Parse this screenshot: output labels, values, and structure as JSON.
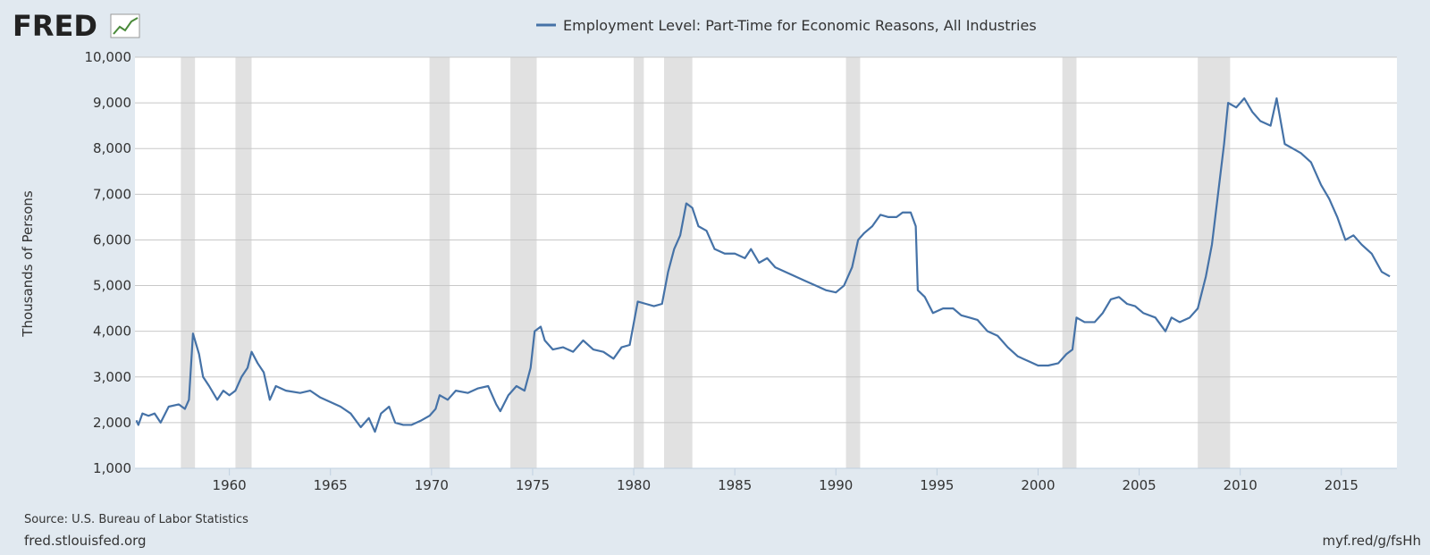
{
  "logo": "FRED",
  "chart_data": {
    "type": "line",
    "title": "Employment Level: Part-Time for Economic Reasons, All Industries",
    "y_axis_label": "Thousands of Persons",
    "source": "Source: U.S. Bureau of Labor Statistics",
    "footer_left": "fred.stlouisfed.org",
    "footer_right": "myf.red/g/fsHh",
    "grid": true,
    "xlim": [
      1955.33,
      2017.75
    ],
    "ylim": [
      1000,
      10000
    ],
    "xticks": [
      1960,
      1965,
      1970,
      1975,
      1980,
      1985,
      1990,
      1995,
      2000,
      2005,
      2010,
      2015
    ],
    "yticks": [
      {
        "value": 1000,
        "label": "1,000"
      },
      {
        "value": 2000,
        "label": "2,000"
      },
      {
        "value": 3000,
        "label": "3,000"
      },
      {
        "value": 4000,
        "label": "4,000"
      },
      {
        "value": 5000,
        "label": "5,000"
      },
      {
        "value": 6000,
        "label": "6,000"
      },
      {
        "value": 7000,
        "label": "7,000"
      },
      {
        "value": 8000,
        "label": "8,000"
      },
      {
        "value": 9000,
        "label": "9,000"
      },
      {
        "value": 10000,
        "label": "10,000"
      }
    ],
    "recessions": [
      [
        1957.6,
        1958.3
      ],
      [
        1960.3,
        1961.1
      ],
      [
        1969.9,
        1970.9
      ],
      [
        1973.9,
        1975.2
      ],
      [
        1980.0,
        1980.5
      ],
      [
        1981.5,
        1982.9
      ],
      [
        1990.5,
        1991.2
      ],
      [
        2001.2,
        2001.9
      ],
      [
        2007.9,
        2009.5
      ]
    ],
    "series": [
      {
        "name": "Employment Level: Part-Time for Economic Reasons, All Industries",
        "color": "#4572a7",
        "x": [
          1955.4,
          1955.5,
          1955.7,
          1956.0,
          1956.3,
          1956.6,
          1957.0,
          1957.5,
          1957.8,
          1958.0,
          1958.2,
          1958.5,
          1958.7,
          1959.0,
          1959.4,
          1959.7,
          1960.0,
          1960.3,
          1960.6,
          1960.9,
          1961.1,
          1961.4,
          1961.7,
          1962.0,
          1962.3,
          1962.8,
          1963.5,
          1964.0,
          1964.5,
          1965.0,
          1965.5,
          1966.0,
          1966.5,
          1966.9,
          1967.2,
          1967.5,
          1967.9,
          1968.2,
          1968.6,
          1969.0,
          1969.5,
          1969.9,
          1970.2,
          1970.4,
          1970.8,
          1971.2,
          1971.8,
          1972.3,
          1972.8,
          1973.2,
          1973.4,
          1973.8,
          1974.2,
          1974.6,
          1974.9,
          1975.1,
          1975.4,
          1975.6,
          1976.0,
          1976.5,
          1977.0,
          1977.5,
          1978.0,
          1978.5,
          1979.0,
          1979.4,
          1979.8,
          1980.2,
          1980.6,
          1981.0,
          1981.4,
          1981.7,
          1982.0,
          1982.3,
          1982.6,
          1982.9,
          1983.2,
          1983.6,
          1984.0,
          1984.5,
          1985.0,
          1985.5,
          1985.8,
          1986.2,
          1986.6,
          1987.0,
          1987.5,
          1988.0,
          1988.5,
          1989.0,
          1989.5,
          1990.0,
          1990.4,
          1990.8,
          1991.1,
          1991.4,
          1991.8,
          1992.2,
          1992.6,
          1993.0,
          1993.3,
          1993.7,
          1993.95,
          1994.05,
          1994.4,
          1994.8,
          1995.3,
          1995.8,
          1996.2,
          1996.6,
          1997.0,
          1997.5,
          1998.0,
          1998.5,
          1999.0,
          1999.5,
          2000.0,
          2000.5,
          2001.0,
          2001.4,
          2001.7,
          2001.9,
          2002.3,
          2002.8,
          2003.2,
          2003.6,
          2004.0,
          2004.4,
          2004.8,
          2005.2,
          2005.8,
          2006.3,
          2006.6,
          2007.0,
          2007.5,
          2007.9,
          2008.3,
          2008.6,
          2008.9,
          2009.2,
          2009.4,
          2009.8,
          2010.2,
          2010.6,
          2011.0,
          2011.5,
          2011.8,
          2012.2,
          2012.6,
          2013.0,
          2013.5,
          2014.0,
          2014.4,
          2014.8,
          2015.2,
          2015.6,
          2016.0,
          2016.5,
          2017.0,
          2017.4
        ],
        "values": [
          2050,
          1950,
          2200,
          2150,
          2200,
          2000,
          2350,
          2400,
          2300,
          2500,
          3950,
          3500,
          3000,
          2800,
          2500,
          2700,
          2600,
          2700,
          3000,
          3200,
          3550,
          3300,
          3100,
          2500,
          2800,
          2700,
          2650,
          2700,
          2550,
          2450,
          2350,
          2200,
          1900,
          2100,
          1800,
          2200,
          2350,
          2000,
          1950,
          1950,
          2050,
          2150,
          2300,
          2600,
          2500,
          2700,
          2650,
          2750,
          2800,
          2400,
          2250,
          2600,
          2800,
          2700,
          3200,
          4000,
          4100,
          3800,
          3600,
          3650,
          3550,
          3800,
          3600,
          3550,
          3400,
          3650,
          3700,
          4650,
          4600,
          4550,
          4600,
          5300,
          5800,
          6100,
          6800,
          6700,
          6300,
          6200,
          5800,
          5700,
          5700,
          5600,
          5800,
          5500,
          5600,
          5400,
          5300,
          5200,
          5100,
          5000,
          4900,
          4850,
          5000,
          5400,
          6000,
          6150,
          6300,
          6550,
          6500,
          6500,
          6600,
          6600,
          6300,
          4900,
          4750,
          4400,
          4500,
          4500,
          4350,
          4300,
          4250,
          4000,
          3900,
          3650,
          3450,
          3350,
          3250,
          3250,
          3300,
          3500,
          3600,
          4300,
          4200,
          4200,
          4400,
          4700,
          4750,
          4600,
          4550,
          4400,
          4300,
          4000,
          4300,
          4200,
          4300,
          4500,
          5200,
          5900,
          7000,
          8100,
          9000,
          8900,
          9100,
          8800,
          8600,
          8500,
          9100,
          8100,
          8000,
          7900,
          7700,
          7200,
          6900,
          6500,
          6000,
          6100,
          5900,
          5700,
          5300,
          5200
        ]
      }
    ]
  }
}
